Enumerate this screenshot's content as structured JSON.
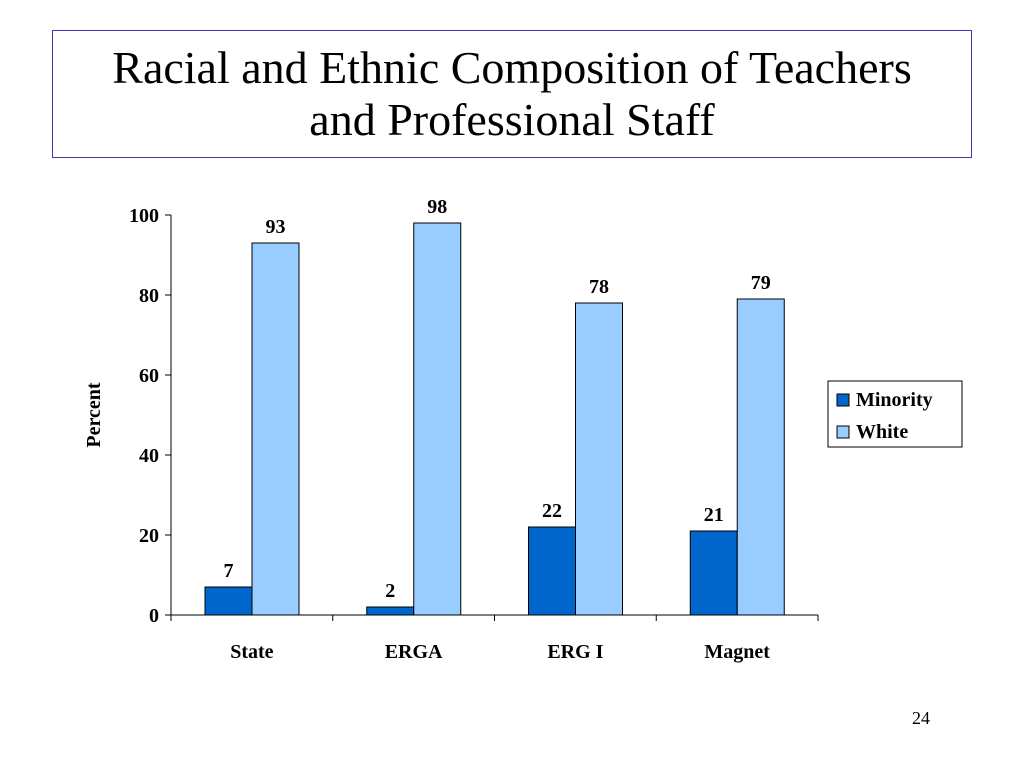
{
  "slide": {
    "title": "Racial and Ethnic Composition of Teachers\nand Professional Staff",
    "page_number": "24"
  },
  "chart_data": {
    "type": "bar",
    "categories": [
      "State",
      "ERGA",
      "ERG I",
      "Magnet"
    ],
    "series": [
      {
        "name": "Minority",
        "values": [
          7,
          2,
          22,
          21
        ],
        "color": "#0066cc"
      },
      {
        "name": "White",
        "values": [
          93,
          98,
          78,
          79
        ],
        "color": "#99ccff"
      }
    ],
    "ylabel": "Percent",
    "ylim": [
      0,
      100
    ],
    "yticks": [
      0,
      20,
      40,
      60,
      80,
      100
    ],
    "grid": false,
    "legend_position": "right"
  }
}
